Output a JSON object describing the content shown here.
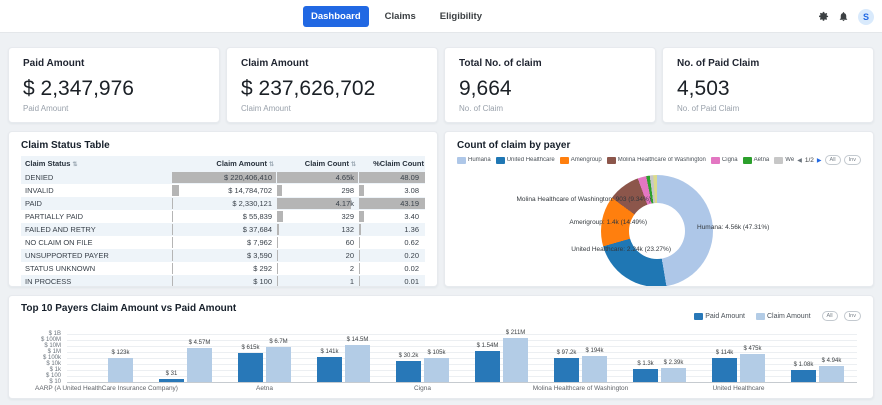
{
  "header": {
    "tabs": [
      {
        "label": "Dashboard",
        "active": true
      },
      {
        "label": "Claims",
        "active": false
      },
      {
        "label": "Eligibility",
        "active": false
      }
    ],
    "avatar_letter": "S"
  },
  "icons": {
    "prev": "◀",
    "next": "▶",
    "sort": "⇅"
  },
  "legend_controls": {
    "all": "All",
    "inv": "Inv",
    "pager": "1/2"
  },
  "kpi_cards": [
    {
      "title": "Paid Amount",
      "value": "$ 2,347,976",
      "sublabel": "Paid Amount"
    },
    {
      "title": "Claim Amount",
      "value": "$ 237,626,702",
      "sublabel": "Claim Amount"
    },
    {
      "title": "Total No. of claim",
      "value": "9,664",
      "sublabel": "No. of Claim"
    },
    {
      "title": "No. of Paid Claim",
      "value": "4,503",
      "sublabel": "No. of Paid Claim"
    }
  ],
  "claim_status_table": {
    "title": "Claim Status Table",
    "columns": [
      "Claim Status",
      "Claim Amount",
      "Claim Count",
      "%Claim Count"
    ],
    "rows": [
      {
        "status": "DENIED",
        "amount": "$ 220,406,410",
        "amount_v": 220406410,
        "count": "4.65k",
        "count_v": 4650,
        "pct": "48.09",
        "pct_v": 48.09
      },
      {
        "status": "INVALID",
        "amount": "$ 14,784,702",
        "amount_v": 14784702,
        "count": "298",
        "count_v": 298,
        "pct": "3.08",
        "pct_v": 3.08
      },
      {
        "status": "PAID",
        "amount": "$ 2,330,121",
        "amount_v": 2330121,
        "count": "4.17k",
        "count_v": 4170,
        "pct": "43.19",
        "pct_v": 43.19
      },
      {
        "status": "PARTIALLY PAID",
        "amount": "$ 55,839",
        "amount_v": 55839,
        "count": "329",
        "count_v": 329,
        "pct": "3.40",
        "pct_v": 3.4
      },
      {
        "status": "FAILED AND RETRY",
        "amount": "$ 37,684",
        "amount_v": 37684,
        "count": "132",
        "count_v": 132,
        "pct": "1.36",
        "pct_v": 1.36
      },
      {
        "status": "NO CLAIM ON FILE",
        "amount": "$ 7,962",
        "amount_v": 7962,
        "count": "60",
        "count_v": 60,
        "pct": "0.62",
        "pct_v": 0.62
      },
      {
        "status": "UNSUPPORTED PAYER",
        "amount": "$ 3,590",
        "amount_v": 3590,
        "count": "20",
        "count_v": 20,
        "pct": "0.20",
        "pct_v": 0.2
      },
      {
        "status": "STATUS UNKNOWN",
        "amount": "$ 292",
        "amount_v": 292,
        "count": "2",
        "count_v": 2,
        "pct": "0.02",
        "pct_v": 0.02
      },
      {
        "status": "IN PROCESS",
        "amount": "$ 100",
        "amount_v": 100,
        "count": "1",
        "count_v": 1,
        "pct": "0.01",
        "pct_v": 0.01
      }
    ]
  },
  "chart_data": [
    {
      "type": "donut",
      "title": "Count of claim by payer",
      "legend_position": "top",
      "slices": [
        {
          "name": "Humana",
          "color": "#aec7e8",
          "pct": 47.31,
          "count_label": "4.56k"
        },
        {
          "name": "United Healthcare",
          "color": "#1f77b4",
          "pct": 23.27,
          "count_label": "2.24k"
        },
        {
          "name": "Amerigroup",
          "color": "#ff7f0e",
          "pct": 14.49,
          "count_label": "1.4k"
        },
        {
          "name": "Molina Healthcare of Washington",
          "color": "#8c564b",
          "pct": 9.34,
          "count_label": "903"
        },
        {
          "name": "Cigna",
          "color": "#e377c2",
          "pct": 2.5
        },
        {
          "name": "Aetna",
          "color": "#2ca02c",
          "pct": 1.0
        },
        {
          "name": "Wellpoint (Amerigroup)",
          "color": "#c7c7c7",
          "pct": 1.0
        },
        {
          "name": "",
          "color": "#dbdb8d",
          "pct": 1.09
        }
      ],
      "callouts": [
        "Molina Healthcare of Washington: 903 (9.34%)",
        "Amerigroup: 1.4k (14.49%)",
        "United Healthcare: 2.24k (23.27%)",
        "Humana: 4.56k (47.31%)"
      ]
    },
    {
      "type": "bar",
      "title": "Top 10 Payers Claim Amount vs Paid Amount",
      "log_scale": true,
      "y_ticks": [
        "$ 1B",
        "$ 100M",
        "$ 10M",
        "$ 1M",
        "$ 100k",
        "$ 10k",
        "$ 1k",
        "$ 100",
        "$ 10"
      ],
      "y_min": 10,
      "y_max": 1000000000,
      "categories": [
        "AARP (A United HealthCare Insurance Company)",
        "",
        "Aetna",
        "",
        "Cigna",
        "",
        "Molina Healthcare of Washington",
        "",
        "United Healthcare",
        ""
      ],
      "series": [
        {
          "name": "Paid Amount",
          "color": "#2878b8",
          "values": [
            null,
            31,
            615000,
            141000,
            30200,
            1540000,
            97200,
            1300,
            114000,
            1080
          ],
          "labels": [
            "",
            "$ 31",
            "$ 615k",
            "$ 141k",
            "$ 30.2k",
            "$ 1.54M",
            "$ 97.2k",
            "$ 1.3k",
            "$ 114k",
            "$ 1.08k"
          ]
        },
        {
          "name": "Claim Amount",
          "color": "#b3cce6",
          "values": [
            123000,
            4570000,
            6700000,
            14500000,
            105000,
            211000000,
            194000,
            2390,
            475000,
            4940
          ],
          "labels": [
            "$ 123k",
            "$ 4.57M",
            "$ 6.7M",
            "$ 14.5M",
            "$ 105k",
            "$ 211M",
            "$ 194k",
            "$ 2.39k",
            "$ 475k",
            "$ 4.94k"
          ]
        }
      ]
    }
  ]
}
